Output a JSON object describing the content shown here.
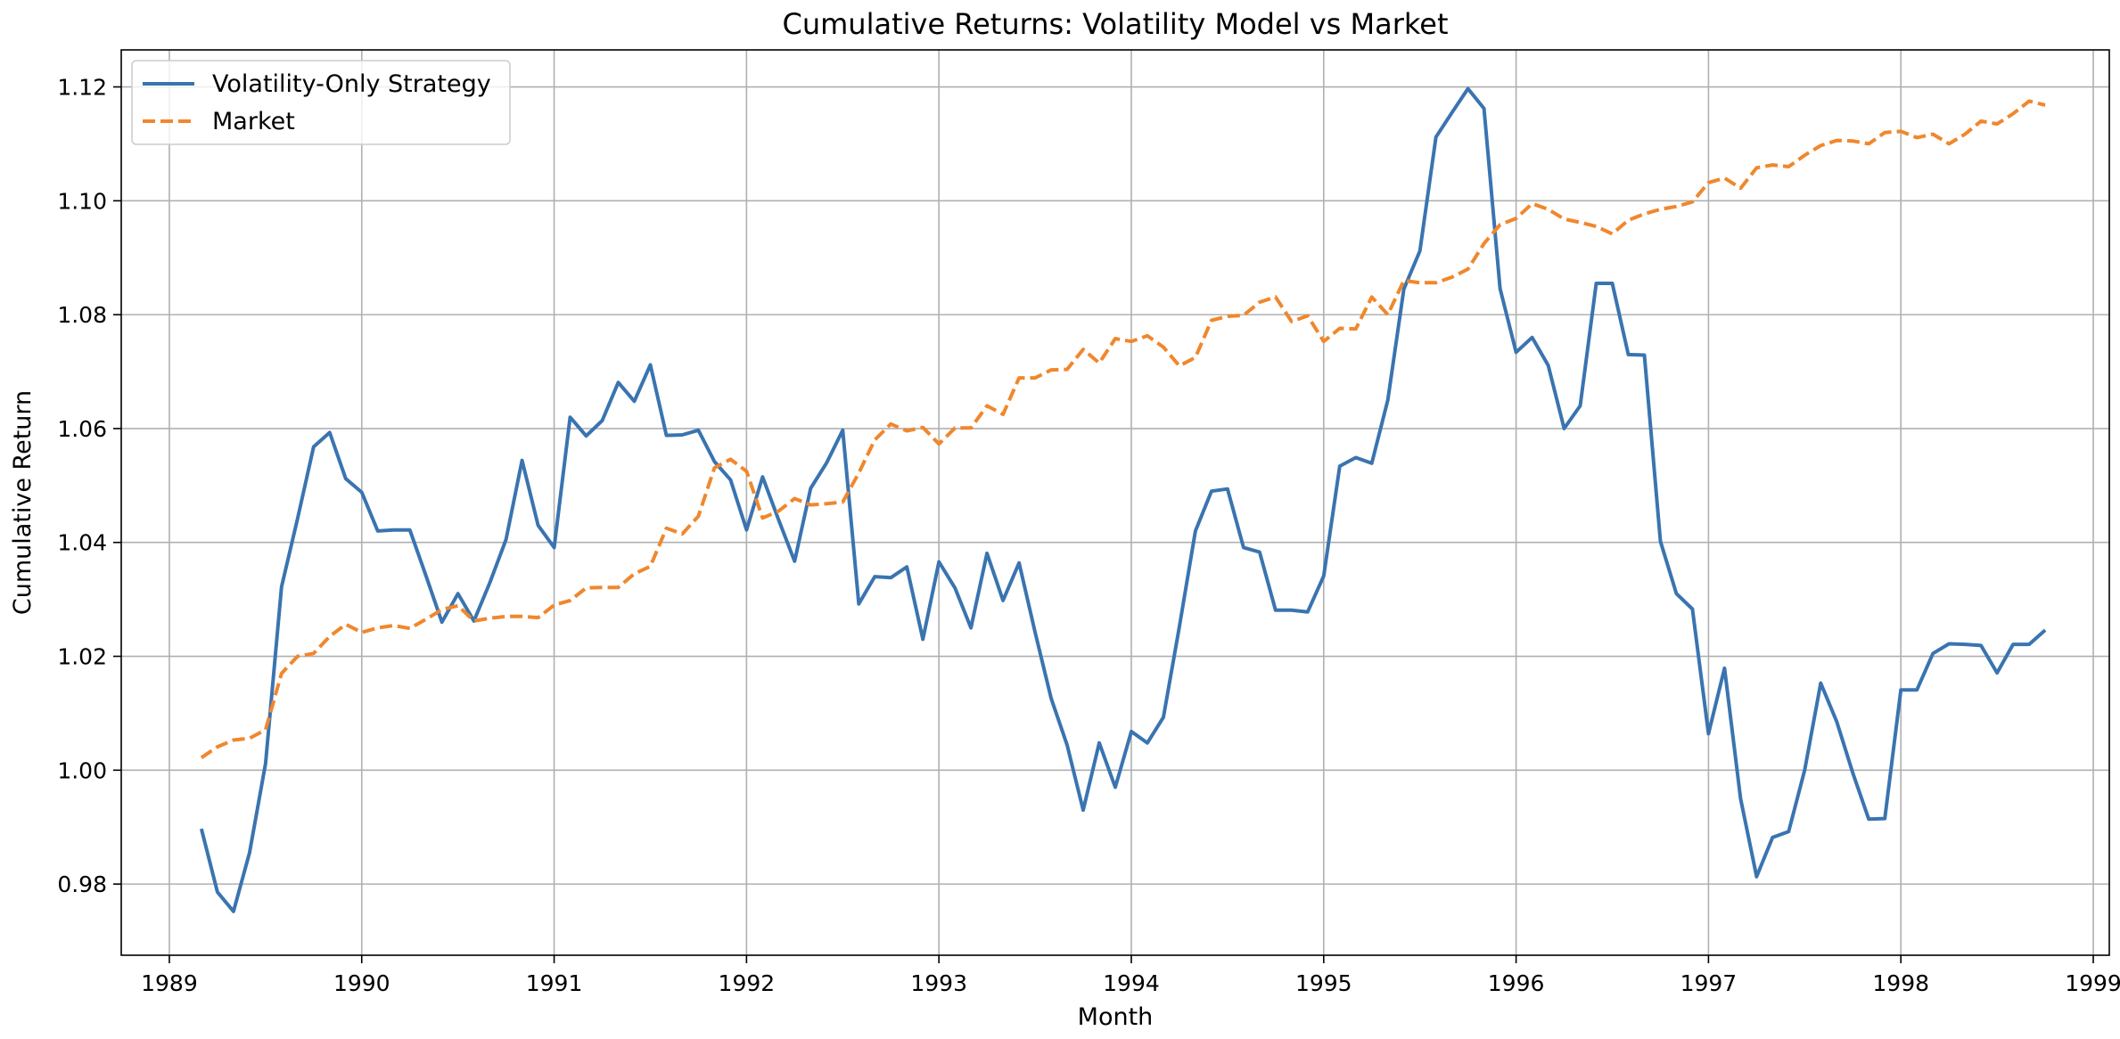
{
  "chart_data": {
    "type": "line",
    "title": "Cumulative Returns: Volatility Model vs Market",
    "xlabel": "Month",
    "ylabel": "Cumulative Return",
    "x_start": "1989-03",
    "x_end": "1998-10",
    "x_frequency": "monthly",
    "xlim": [
      "1988-10-01",
      "1999-02-01"
    ],
    "ylim": [
      0.9675,
      1.1265
    ],
    "x_ticks": [
      "1989",
      "1990",
      "1991",
      "1992",
      "1993",
      "1994",
      "1995",
      "1996",
      "1997",
      "1998",
      "1999"
    ],
    "y_ticks": [
      "0.98",
      "1.00",
      "1.02",
      "1.04",
      "1.06",
      "1.08",
      "1.10",
      "1.12"
    ],
    "grid": true,
    "legend_position": "top-left",
    "series": [
      {
        "name": "Volatility-Only Strategy",
        "color": "#3a74b0",
        "style": "solid",
        "values": [
          0.9897,
          0.9786,
          0.9752,
          0.9855,
          1.0012,
          1.0322,
          1.0442,
          1.0568,
          1.0593,
          1.0512,
          1.0488,
          1.042,
          1.0422,
          1.0422,
          1.0342,
          1.026,
          1.031,
          1.0262,
          1.033,
          1.0405,
          1.0544,
          1.043,
          1.0391,
          1.062,
          1.0587,
          1.0614,
          1.0681,
          1.0648,
          1.0712,
          1.0588,
          1.0589,
          1.0597,
          1.0542,
          1.051,
          1.0422,
          1.0515,
          1.044,
          1.0367,
          1.0495,
          1.054,
          1.0597,
          1.0292,
          1.034,
          1.0338,
          1.0357,
          1.023,
          1.0366,
          1.032,
          1.025,
          1.0381,
          1.0298,
          1.0364,
          1.0242,
          1.0126,
          1.0044,
          0.993,
          1.0048,
          0.997,
          1.0068,
          1.0048,
          1.0093,
          1.0252,
          1.042,
          1.049,
          1.0494,
          1.0391,
          1.0383,
          1.0281,
          1.0281,
          1.0278,
          1.0341,
          1.0534,
          1.0549,
          1.0539,
          1.065,
          1.0845,
          1.0912,
          1.1112,
          1.1155,
          1.1197,
          1.1162,
          1.0846,
          1.0734,
          1.076,
          1.0711,
          1.06,
          1.064,
          1.0855,
          1.0855,
          1.073,
          1.0729,
          1.0402,
          1.031,
          1.0283,
          1.0064,
          1.0179,
          0.995,
          0.9813,
          0.9882,
          0.9892,
          1.0,
          1.0153,
          1.0085,
          0.9995,
          0.9914,
          0.9915,
          1.0141,
          1.0141,
          1.0205,
          1.0222,
          1.0221,
          1.0219,
          1.0171,
          1.0221,
          1.0221,
          1.0246
        ]
      },
      {
        "name": "Market",
        "color": "#f0872d",
        "style": "dashed",
        "values": [
          1.0022,
          1.0041,
          1.0053,
          1.0056,
          1.0071,
          1.017,
          1.02,
          1.0205,
          1.0235,
          1.0256,
          1.0242,
          1.025,
          1.0254,
          1.0249,
          1.0265,
          1.0282,
          1.0289,
          1.0262,
          1.0267,
          1.027,
          1.027,
          1.0268,
          1.029,
          1.0298,
          1.032,
          1.0321,
          1.0321,
          1.0345,
          1.0358,
          1.0425,
          1.0415,
          1.0446,
          1.0531,
          1.0546,
          1.0525,
          1.0443,
          1.0455,
          1.0477,
          1.0466,
          1.0468,
          1.0471,
          1.0522,
          1.058,
          1.0608,
          1.0596,
          1.0602,
          1.0573,
          1.0601,
          1.0601,
          1.064,
          1.0625,
          1.0689,
          1.0689,
          1.0703,
          1.0704,
          1.0739,
          1.0715,
          1.0758,
          1.0753,
          1.0763,
          1.0743,
          1.071,
          1.0725,
          1.079,
          1.0797,
          1.0799,
          1.0822,
          1.0831,
          1.0788,
          1.0798,
          1.0753,
          1.0776,
          1.0775,
          1.0831,
          1.08,
          1.086,
          1.0856,
          1.0856,
          1.0866,
          1.088,
          1.0925,
          1.0958,
          1.0969,
          1.0995,
          1.0985,
          1.0968,
          1.0962,
          1.0955,
          1.0942,
          1.0966,
          1.0977,
          1.0985,
          1.099,
          1.0998,
          1.1032,
          1.104,
          1.1022,
          1.1058,
          1.1063,
          1.106,
          1.108,
          1.1097,
          1.1106,
          1.1105,
          1.11,
          1.112,
          1.1122,
          1.1111,
          1.1117,
          1.11,
          1.1117,
          1.114,
          1.1135,
          1.1153,
          1.1175,
          1.1168
        ]
      }
    ]
  }
}
